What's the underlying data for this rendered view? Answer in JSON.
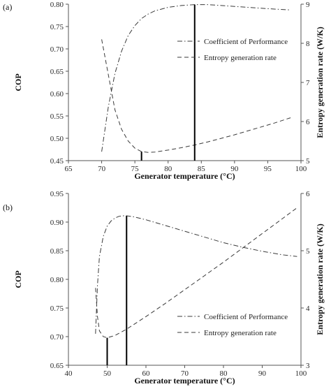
{
  "chart_data": [
    {
      "panel_label": "(a)",
      "type": "line",
      "xlabel": "Generator temperature (°C)",
      "ylabel_left": "COP",
      "ylabel_right": "Entropy generation rate (W/K)",
      "xlim": [
        65,
        100
      ],
      "ylim_left": [
        0.45,
        0.8
      ],
      "ylim_right": [
        5,
        9
      ],
      "x_ticks": [
        "65",
        "70",
        "75",
        "80",
        "85",
        "90",
        "95",
        "100"
      ],
      "y_left_ticks": [
        "0.45",
        "0.50",
        "0.55",
        "0.60",
        "0.65",
        "0.70",
        "0.75",
        "0.80"
      ],
      "y_right_ticks": [
        "5",
        "6",
        "7",
        "8",
        "9"
      ],
      "legend": [
        "Coefficient of Performance",
        "Entropy generation rate"
      ],
      "series": [
        {
          "name": "Coefficient of Performance",
          "axis": "left",
          "style": "dash-dot",
          "x": [
            70,
            71,
            72,
            73,
            74,
            75,
            76,
            77,
            78,
            80,
            82,
            84,
            86,
            88,
            90,
            92,
            94,
            96,
            98.5
          ],
          "y": [
            0.47,
            0.57,
            0.645,
            0.695,
            0.73,
            0.752,
            0.768,
            0.778,
            0.785,
            0.793,
            0.797,
            0.799,
            0.799,
            0.797,
            0.795,
            0.793,
            0.791,
            0.789,
            0.787
          ]
        },
        {
          "name": "Entropy generation rate",
          "axis": "right",
          "style": "dashed",
          "x": [
            70,
            71,
            72,
            73,
            74,
            75,
            76,
            77,
            78,
            80,
            82,
            84,
            86,
            88,
            90,
            92,
            94,
            96,
            98.5
          ],
          "y": [
            8.1,
            7.2,
            6.3,
            5.8,
            5.5,
            5.32,
            5.23,
            5.21,
            5.22,
            5.27,
            5.33,
            5.4,
            5.48,
            5.57,
            5.66,
            5.76,
            5.86,
            5.96,
            6.1
          ]
        }
      ],
      "markers": [
        {
          "x": 76,
          "axis": "right",
          "y_from": 5,
          "y_to": 5.23
        },
        {
          "x": 84,
          "axis": "left",
          "y_from": 0.45,
          "y_to": 0.799
        }
      ]
    },
    {
      "panel_label": "(b)",
      "type": "line",
      "xlabel": "Generator temperature (°C)",
      "ylabel_left": "COP",
      "ylabel_right": "Entropy generation rate (W/K)",
      "xlim": [
        40,
        100
      ],
      "ylim_left": [
        0.65,
        0.95
      ],
      "ylim_right": [
        3,
        6
      ],
      "x_ticks": [
        "40",
        "50",
        "60",
        "70",
        "80",
        "90",
        "100"
      ],
      "y_left_ticks": [
        "0.65",
        "0.70",
        "0.75",
        "0.80",
        "0.85",
        "0.90",
        "0.95"
      ],
      "y_right_ticks": [
        "3",
        "4",
        "5",
        "6"
      ],
      "legend": [
        "Coefficient of Performance",
        "Entropy generation rate"
      ],
      "series": [
        {
          "name": "Coefficient of Performance",
          "axis": "left",
          "style": "dash-dot",
          "x": [
            47,
            47.5,
            48,
            49,
            50,
            51,
            52,
            53,
            54,
            55,
            57,
            60,
            65,
            70,
            75,
            80,
            85,
            90,
            95,
            99
          ],
          "y": [
            0.705,
            0.79,
            0.84,
            0.875,
            0.893,
            0.902,
            0.907,
            0.91,
            0.911,
            0.911,
            0.909,
            0.904,
            0.894,
            0.884,
            0.874,
            0.864,
            0.856,
            0.849,
            0.843,
            0.84
          ]
        },
        {
          "name": "Entropy generation rate",
          "axis": "right",
          "style": "dashed",
          "x": [
            47,
            47.5,
            48,
            49,
            50,
            52,
            55,
            60,
            65,
            70,
            75,
            80,
            85,
            90,
            95,
            99
          ],
          "y": [
            4.35,
            3.85,
            3.6,
            3.5,
            3.48,
            3.52,
            3.63,
            3.85,
            4.08,
            4.32,
            4.56,
            4.8,
            5.05,
            5.3,
            5.55,
            5.75
          ]
        }
      ],
      "markers": [
        {
          "x": 50,
          "axis": "right",
          "y_from": 3,
          "y_to": 3.48
        },
        {
          "x": 55,
          "axis": "left",
          "y_from": 0.65,
          "y_to": 0.911
        }
      ]
    }
  ]
}
